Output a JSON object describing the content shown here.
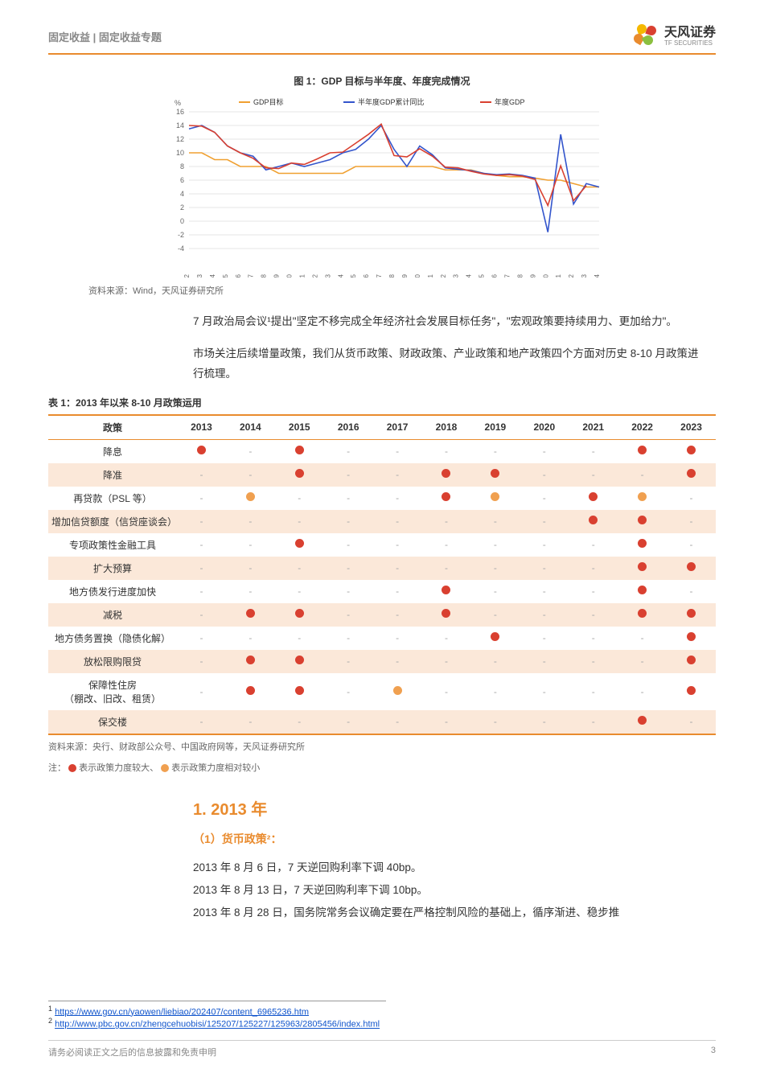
{
  "header": {
    "title": "固定收益 | 固定收益专题",
    "brand": "天风证券",
    "brand_sub": "TF SECURITIES"
  },
  "logo_colors": [
    "#f5b800",
    "#d94030",
    "#e98b2e",
    "#8bbf3f"
  ],
  "chart": {
    "title": "图 1：GDP 目标与半年度、年度完成情况",
    "unit": "%",
    "legend": [
      "GDP目标",
      "半年度GDP累计同比",
      "年度GDP"
    ],
    "legend_colors": [
      "#f0a030",
      "#3355cc",
      "#d94030"
    ],
    "ylim": [
      -4,
      16
    ],
    "ytick_step": 2,
    "years": [
      "1992",
      "1993",
      "1994",
      "1995",
      "1996",
      "1997",
      "1998",
      "1999",
      "2000",
      "2001",
      "2002",
      "2003",
      "2004",
      "2005",
      "2006",
      "2007",
      "2008",
      "2009",
      "2010",
      "2011",
      "2012",
      "2013",
      "2014",
      "2015",
      "2016",
      "2017",
      "2018",
      "2019",
      "2020",
      "2021",
      "2022",
      "2023",
      "2024"
    ],
    "gdp_target": [
      10,
      10,
      9,
      9,
      8,
      8,
      8,
      7,
      7,
      7,
      7,
      7,
      7,
      8,
      8,
      8,
      8,
      8,
      8,
      8,
      7.5,
      7.5,
      7.5,
      7,
      6.7,
      6.5,
      6.5,
      6.3,
      6,
      6,
      5.5,
      5,
      5
    ],
    "half_year": [
      13.5,
      14,
      13,
      11,
      10,
      9.5,
      7.5,
      8,
      8.5,
      8,
      8.5,
      9,
      10,
      10.5,
      12,
      14,
      10.5,
      8,
      11,
      9.7,
      7.8,
      7.6,
      7.4,
      7,
      6.8,
      6.9,
      6.7,
      6.3,
      -1.6,
      12.7,
      2.5,
      5.5,
      5
    ],
    "annual": [
      14,
      13.9,
      13,
      11,
      10,
      9.2,
      7.8,
      7.7,
      8.5,
      8.3,
      9.1,
      10,
      10.1,
      11.4,
      12.7,
      14.2,
      9.6,
      9.4,
      10.6,
      9.5,
      7.9,
      7.8,
      7.3,
      6.9,
      6.7,
      6.8,
      6.6,
      6.1,
      2.3,
      8.1,
      3,
      5.2,
      null
    ],
    "grid_color": "#cccccc",
    "bg": "#ffffff",
    "source": "资料来源：Wind，天风证券研究所"
  },
  "para1": "7 月政治局会议¹提出\"坚定不移完成全年经济社会发展目标任务\"，\"宏观政策要持续用力、更加给力\"。",
  "para2": "市场关注后续增量政策，我们从货币政策、财政政策、产业政策和地产政策四个方面对历史 8-10 月政策进行梳理。",
  "table": {
    "title": "表 1：2013 年以来 8-10 月政策运用",
    "header": [
      "政策",
      "2013",
      "2014",
      "2015",
      "2016",
      "2017",
      "2018",
      "2019",
      "2020",
      "2021",
      "2022",
      "2023"
    ],
    "rows": [
      {
        "label": "降息",
        "cells": [
          "big",
          "-",
          "big",
          "-",
          "-",
          "-",
          "-",
          "-",
          "-",
          "big",
          "big"
        ]
      },
      {
        "label": "降准",
        "cells": [
          "-",
          "-",
          "big",
          "-",
          "-",
          "big",
          "big",
          "-",
          "-",
          "-",
          "big"
        ]
      },
      {
        "label": "再贷款（PSL 等）",
        "cells": [
          "-",
          "small",
          "-",
          "-",
          "-",
          "big",
          "small",
          "-",
          "big",
          "small",
          "-"
        ]
      },
      {
        "label": "增加信贷额度（信贷座谈会）",
        "cells": [
          "-",
          "-",
          "-",
          "-",
          "-",
          "-",
          "-",
          "-",
          "big",
          "big",
          "-"
        ]
      },
      {
        "label": "专项政策性金融工具",
        "cells": [
          "-",
          "-",
          "big",
          "-",
          "-",
          "-",
          "-",
          "-",
          "-",
          "big",
          "-"
        ]
      },
      {
        "label": "扩大预算",
        "cells": [
          "-",
          "-",
          "-",
          "-",
          "-",
          "-",
          "-",
          "-",
          "-",
          "big",
          "big"
        ]
      },
      {
        "label": "地方债发行进度加快",
        "cells": [
          "-",
          "-",
          "-",
          "-",
          "-",
          "big",
          "-",
          "-",
          "-",
          "big",
          "-"
        ]
      },
      {
        "label": "减税",
        "cells": [
          "-",
          "big",
          "big",
          "-",
          "-",
          "big",
          "-",
          "-",
          "-",
          "big",
          "big"
        ]
      },
      {
        "label": "地方债务置换（隐债化解）",
        "cells": [
          "-",
          "-",
          "-",
          "-",
          "-",
          "-",
          "big",
          "-",
          "-",
          "-",
          "big"
        ]
      },
      {
        "label": "放松限购限贷",
        "cells": [
          "-",
          "big",
          "big",
          "-",
          "-",
          "-",
          "-",
          "-",
          "-",
          "-",
          "big"
        ]
      },
      {
        "label": "保障性住房\n（棚改、旧改、租赁）",
        "cells": [
          "-",
          "big",
          "big",
          "-",
          "small",
          "-",
          "-",
          "-",
          "-",
          "-",
          "big"
        ]
      },
      {
        "label": "保交楼",
        "cells": [
          "-",
          "-",
          "-",
          "-",
          "-",
          "-",
          "-",
          "-",
          "-",
          "big",
          "-"
        ]
      }
    ],
    "source": "资料来源：央行、财政部公众号、中国政府网等，天风证券研究所",
    "note_prefix": "注：",
    "note_big": " 表示政策力度较大、",
    "note_small": " 表示政策力度相对较小"
  },
  "section": {
    "h1": "1. 2013 年",
    "h2": "（1）货币政策²：",
    "lines": [
      "2013 年 8 月 6 日，7 天逆回购利率下调 40bp。",
      "2013 年 8 月 13 日，7 天逆回购利率下调 10bp。",
      "2013 年 8 月 28 日，国务院常务会议确定要在严格控制风险的基础上，循序渐进、稳步推"
    ]
  },
  "footnotes": [
    {
      "n": "1",
      "href": "https://www.gov.cn/yaowen/liebiao/202407/content_6965236.htm"
    },
    {
      "n": "2",
      "href": "http://www.pbc.gov.cn/zhengcehuobisi/125207/125227/125963/2805456/index.html"
    }
  ],
  "footer": {
    "text": "请务必阅读正文之后的信息披露和免责申明",
    "page": "3"
  }
}
